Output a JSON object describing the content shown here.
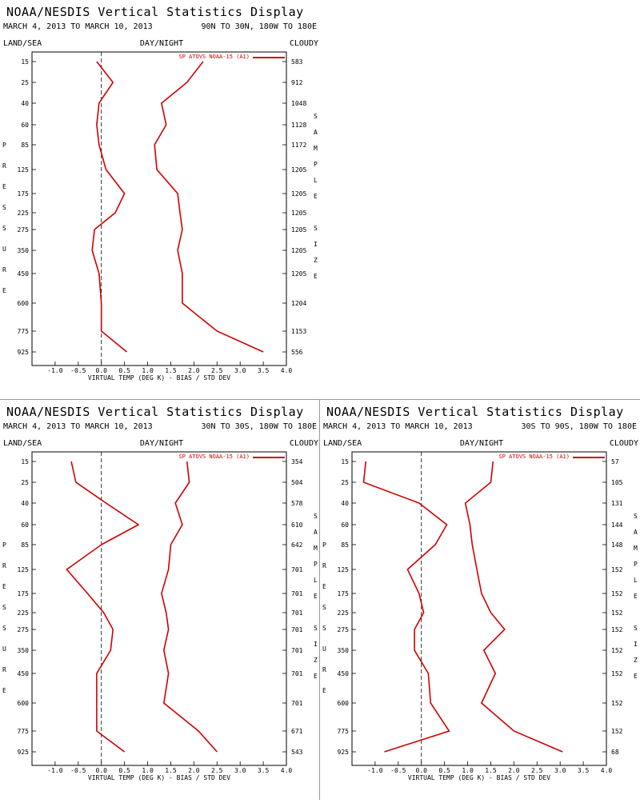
{
  "common": {
    "title": "NOAA/NESDIS Vertical Statistics Display",
    "date_range": "MARCH 4, 2013 TO MARCH 10, 2013",
    "land_sea": "LAND/SEA",
    "day_night": "DAY/NIGHT",
    "cloudy": "CLOUDY",
    "xlabel": "VIRTUAL TEMP (DEG K) - BIAS / STD DEV",
    "pressure_label": "PRESSURE",
    "sample_label": "SAMPLE SIZE",
    "legend": "SP ATOVS NOAA-15 (A1)",
    "line_color": "#d00000",
    "x_ticks": [
      "-1.0",
      "-0.5",
      "0.0",
      "0.5",
      "1.0",
      "1.5",
      "2.0",
      "2.5",
      "3.0",
      "3.5",
      "4.0"
    ],
    "pressure_levels": [
      "15",
      "25",
      "40",
      "60",
      "85",
      "125",
      "175",
      "225",
      "275",
      "350",
      "450",
      "600",
      "775",
      "925"
    ]
  },
  "chart_data": [
    {
      "type": "line",
      "region": "90N TO 30N, 180W TO 180E",
      "xlim": [
        -1.5,
        4.0
      ],
      "y": [
        15,
        25,
        40,
        60,
        85,
        125,
        175,
        225,
        275,
        350,
        450,
        600,
        775,
        925
      ],
      "sample_size": [
        "583",
        "912",
        "1048",
        "1128",
        "1172",
        "1205",
        "1205",
        "1205",
        "1205",
        "1205",
        "1205",
        "1204",
        "1153",
        "556"
      ],
      "series": [
        {
          "values": [
            -0.1,
            0.25,
            -0.05,
            -0.1,
            -0.05,
            0.1,
            0.5,
            0.3,
            -0.15,
            -0.2,
            -0.05,
            0.0,
            0.0,
            0.55
          ]
        },
        {
          "values": [
            2.2,
            1.85,
            1.3,
            1.4,
            1.15,
            1.2,
            1.65,
            1.7,
            1.75,
            1.65,
            1.75,
            1.75,
            2.5,
            3.5
          ]
        }
      ]
    },
    {
      "type": "line",
      "region": "30N TO 30S, 180W TO 180E",
      "xlim": [
        -1.5,
        4.0
      ],
      "y": [
        15,
        25,
        40,
        60,
        85,
        125,
        175,
        225,
        275,
        350,
        450,
        600,
        775,
        925
      ],
      "sample_size": [
        "354",
        "504",
        "578",
        "610",
        "642",
        "701",
        "701",
        "701",
        "701",
        "701",
        "701",
        "701",
        "671",
        "543"
      ],
      "series": [
        {
          "values": [
            -0.65,
            -0.55,
            0.1,
            0.8,
            0.0,
            -0.75,
            -0.3,
            0.05,
            0.25,
            0.2,
            -0.1,
            -0.1,
            -0.1,
            0.5
          ]
        },
        {
          "values": [
            1.85,
            1.9,
            1.6,
            1.75,
            1.5,
            1.45,
            1.3,
            1.4,
            1.45,
            1.35,
            1.45,
            1.35,
            2.1,
            2.5
          ]
        }
      ]
    },
    {
      "type": "line",
      "region": "30S TO 90S, 180W TO 180E",
      "xlim": [
        -1.5,
        4.0
      ],
      "y": [
        15,
        25,
        40,
        60,
        85,
        125,
        175,
        225,
        275,
        350,
        450,
        600,
        775,
        925
      ],
      "sample_size": [
        "57",
        "105",
        "131",
        "144",
        "148",
        "152",
        "152",
        "152",
        "152",
        "152",
        "152",
        "152",
        "152",
        "68"
      ],
      "series": [
        {
          "values": [
            -1.2,
            -1.25,
            -0.05,
            0.55,
            0.3,
            -0.3,
            -0.05,
            0.05,
            -0.15,
            -0.15,
            0.15,
            0.2,
            0.6,
            -0.8
          ]
        },
        {
          "values": [
            1.55,
            1.5,
            0.95,
            1.05,
            1.1,
            1.2,
            1.3,
            1.5,
            1.8,
            1.35,
            1.6,
            1.3,
            2.0,
            3.05
          ]
        }
      ]
    }
  ]
}
